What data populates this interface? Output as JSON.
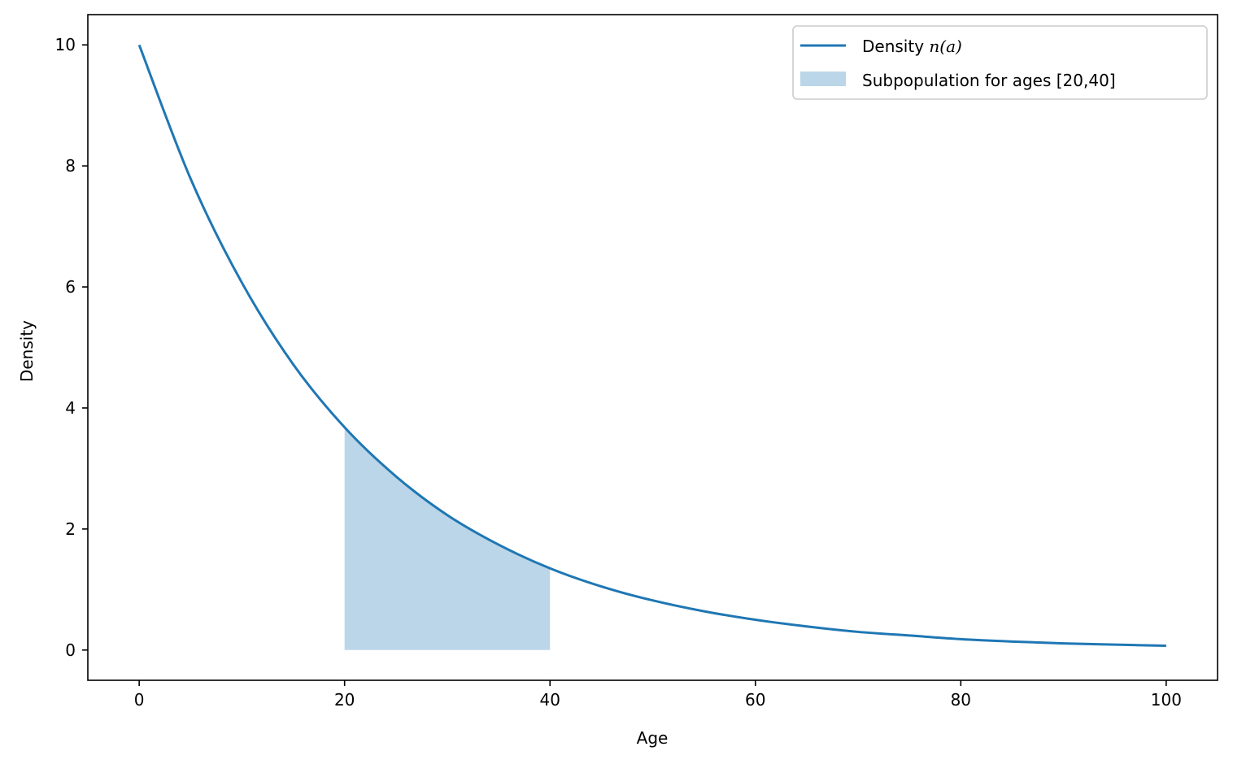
{
  "chart_data": {
    "type": "line",
    "title": "",
    "xlabel": "Age",
    "ylabel": "Density",
    "xlim": [
      -5,
      105
    ],
    "ylim": [
      -0.5,
      10.5
    ],
    "xticks": [
      0,
      20,
      40,
      60,
      80,
      100
    ],
    "yticks": [
      0,
      2,
      4,
      6,
      8,
      10
    ],
    "grid": false,
    "legend_position": "top-right",
    "series": [
      {
        "name": "Density n(a)",
        "legend_prefix": "Density ",
        "legend_math": "n(a)",
        "color": "#1f77b4",
        "x": [
          0,
          5,
          10,
          15,
          20,
          25,
          30,
          35,
          40,
          45,
          50,
          55,
          60,
          65,
          70,
          75,
          80,
          85,
          90,
          95,
          100
        ],
        "y": [
          10.0,
          7.79,
          6.07,
          4.72,
          3.68,
          2.87,
          2.23,
          1.74,
          1.35,
          1.05,
          0.82,
          0.64,
          0.5,
          0.39,
          0.3,
          0.24,
          0.18,
          0.14,
          0.11,
          0.09,
          0.07
        ]
      }
    ],
    "shaded_region": {
      "name": "Subpopulation for ages [20,40]",
      "color": "#1f77b4",
      "opacity": 0.3,
      "x": [
        20,
        25,
        30,
        35,
        40
      ],
      "y": [
        3.68,
        2.87,
        2.23,
        1.74,
        1.35
      ]
    }
  }
}
